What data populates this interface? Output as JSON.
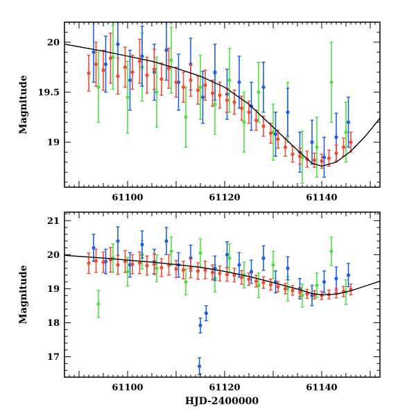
{
  "chart_data": [
    {
      "id": "upper",
      "type": "scatter",
      "xlabel": "",
      "ylabel": "Magnitude",
      "xlim": [
        61087,
        61152
      ],
      "ylim": [
        20.2,
        18.55
      ],
      "y_inverted": true,
      "x_ticks": [
        61100,
        61120,
        61140
      ],
      "y_ticks": [
        19,
        19.5,
        20
      ],
      "x_tick_labels": [
        "61100",
        "61120",
        "61140"
      ],
      "y_tick_labels": [
        "19",
        "19.5",
        "20"
      ],
      "model_curve": {
        "color": "#000000",
        "x": [
          61087,
          61095,
          61100,
          61105,
          61110,
          61115,
          61120,
          61125,
          61130,
          61135,
          61138,
          61140,
          61143,
          61146,
          61149,
          61152
        ],
        "y": [
          19.98,
          19.91,
          19.86,
          19.81,
          19.74,
          19.66,
          19.55,
          19.38,
          19.15,
          18.92,
          18.79,
          18.76,
          18.8,
          18.91,
          19.06,
          19.24
        ]
      },
      "series": [
        {
          "name": "red",
          "color": "#f04a30",
          "x": [
            61092.0,
            61093.5,
            61095.0,
            61096.5,
            61098.0,
            61099.5,
            61101.0,
            61102.5,
            61104.0,
            61105.5,
            61107.0,
            61108.5,
            61110.0,
            61111.5,
            61113.0,
            61114.5,
            61116.0,
            61117.5,
            61119.0,
            61120.5,
            61122.0,
            61123.5,
            61125.0,
            61126.5,
            61128.0,
            61129.5,
            61131.0,
            61132.5,
            61134.0,
            61135.5,
            61137.0,
            61138.5,
            61140.0,
            61141.5,
            61143.0,
            61144.5,
            61146.0
          ],
          "y": [
            19.69,
            19.78,
            19.72,
            19.84,
            19.66,
            19.75,
            19.7,
            19.81,
            19.67,
            19.73,
            19.63,
            19.74,
            19.6,
            19.55,
            19.62,
            19.52,
            19.57,
            19.49,
            19.47,
            19.42,
            19.4,
            19.34,
            19.3,
            19.22,
            19.16,
            19.09,
            19.03,
            18.95,
            18.88,
            18.86,
            18.83,
            18.82,
            18.81,
            18.84,
            18.89,
            18.95,
            19.0
          ],
          "err": [
            0.18,
            0.22,
            0.2,
            0.25,
            0.18,
            0.2,
            0.17,
            0.22,
            0.18,
            0.2,
            0.16,
            0.2,
            0.15,
            0.15,
            0.16,
            0.14,
            0.15,
            0.13,
            0.13,
            0.12,
            0.12,
            0.12,
            0.11,
            0.1,
            0.1,
            0.1,
            0.09,
            0.09,
            0.08,
            0.08,
            0.08,
            0.07,
            0.07,
            0.08,
            0.08,
            0.09,
            0.1
          ]
        },
        {
          "name": "blue",
          "color": "#1f5fe0",
          "x": [
            61093.0,
            61095.5,
            61098.0,
            61100.5,
            61103.0,
            61105.5,
            61108.0,
            61110.5,
            61113.0,
            61115.5,
            61118.0,
            61120.5,
            61123.0,
            61125.5,
            61128.0,
            61130.5,
            61133.0,
            61135.5,
            61138.0,
            61140.5,
            61143.0,
            61145.5
          ],
          "y": [
            19.9,
            19.78,
            19.98,
            19.62,
            19.86,
            19.7,
            19.92,
            19.6,
            19.78,
            19.45,
            19.7,
            19.48,
            19.6,
            19.36,
            19.55,
            19.08,
            19.3,
            18.9,
            19.0,
            18.85,
            19.05,
            19.2
          ],
          "err": [
            0.3,
            0.28,
            0.32,
            0.3,
            0.3,
            0.28,
            0.3,
            0.28,
            0.26,
            0.26,
            0.28,
            0.25,
            0.26,
            0.24,
            0.25,
            0.22,
            0.24,
            0.2,
            0.22,
            0.2,
            0.24,
            0.25
          ]
        },
        {
          "name": "green",
          "color": "#4ee045",
          "x": [
            61094.0,
            61097.0,
            61100.0,
            61103.0,
            61106.0,
            61109.0,
            61112.0,
            61115.0,
            61118.0,
            61121.0,
            61124.0,
            61127.0,
            61130.0,
            61133.0,
            61136.0,
            61139.0,
            61142.0,
            61145.0
          ],
          "y": [
            19.55,
            19.85,
            19.45,
            19.75,
            19.5,
            19.82,
            19.25,
            19.55,
            19.38,
            19.62,
            19.2,
            19.5,
            19.1,
            19.3,
            18.85,
            18.95,
            19.6,
            19.1
          ],
          "err": [
            0.35,
            0.32,
            0.36,
            0.34,
            0.35,
            0.33,
            0.3,
            0.32,
            0.3,
            0.32,
            0.3,
            0.3,
            0.28,
            0.3,
            0.26,
            0.3,
            0.4,
            0.3
          ]
        }
      ]
    },
    {
      "id": "lower",
      "type": "scatter",
      "xlabel": "HJD-2400000",
      "ylabel": "Magnitude",
      "xlim": [
        61087,
        61152
      ],
      "ylim": [
        21.25,
        16.4
      ],
      "y_inverted": true,
      "x_ticks": [
        61100,
        61120,
        61140
      ],
      "y_ticks": [
        17,
        18,
        19,
        20,
        21
      ],
      "x_tick_labels": [
        "61100",
        "61120",
        "61140"
      ],
      "y_tick_labels": [
        "17",
        "18",
        "19",
        "20",
        "21"
      ],
      "model_curve": {
        "color": "#000000",
        "x": [
          61087,
          61095,
          61100,
          61105,
          61110,
          61115,
          61120,
          61125,
          61130,
          61135,
          61138,
          61140,
          61143,
          61146,
          61149,
          61152
        ],
        "y": [
          19.98,
          19.9,
          19.84,
          19.78,
          19.71,
          19.63,
          19.51,
          19.36,
          19.18,
          18.99,
          18.86,
          18.82,
          18.84,
          18.94,
          19.08,
          19.22
        ]
      },
      "series": [
        {
          "name": "red",
          "color": "#f04a30",
          "x": [
            61092.0,
            61093.5,
            61095.0,
            61096.5,
            61098.0,
            61099.5,
            61101.0,
            61102.5,
            61104.0,
            61105.5,
            61107.0,
            61108.5,
            61110.0,
            61111.5,
            61113.0,
            61114.5,
            61116.0,
            61117.5,
            61119.0,
            61120.5,
            61122.0,
            61123.5,
            61125.0,
            61126.5,
            61128.0,
            61129.5,
            61131.0,
            61132.5,
            61134.0,
            61135.5,
            61137.0,
            61138.5,
            61140.0,
            61141.5,
            61143.0,
            61144.5,
            61146.0
          ],
          "y": [
            19.75,
            19.82,
            19.78,
            19.85,
            19.7,
            19.8,
            19.72,
            19.76,
            19.68,
            19.72,
            19.62,
            19.7,
            19.58,
            19.55,
            19.6,
            19.52,
            19.55,
            19.48,
            19.45,
            19.42,
            19.4,
            19.33,
            19.28,
            19.22,
            19.18,
            19.12,
            19.06,
            19.0,
            18.95,
            18.9,
            18.85,
            18.82,
            18.8,
            18.83,
            18.87,
            18.92,
            18.98
          ],
          "err": [
            0.3,
            0.34,
            0.3,
            0.36,
            0.28,
            0.32,
            0.28,
            0.32,
            0.28,
            0.3,
            0.26,
            0.3,
            0.25,
            0.26,
            0.28,
            0.24,
            0.26,
            0.22,
            0.22,
            0.2,
            0.2,
            0.2,
            0.18,
            0.17,
            0.17,
            0.16,
            0.15,
            0.15,
            0.14,
            0.14,
            0.13,
            0.12,
            0.12,
            0.13,
            0.14,
            0.15,
            0.16
          ]
        },
        {
          "name": "blue",
          "color": "#1f5fe0",
          "x": [
            61093.0,
            61095.5,
            61098.0,
            61100.5,
            61103.0,
            61105.5,
            61108.0,
            61110.5,
            61113.0,
            61114.8,
            61115.0,
            61116.2,
            61118.0,
            61120.5,
            61123.0,
            61125.5,
            61128.0,
            61130.5,
            61133.0,
            61135.5,
            61138.0,
            61140.5,
            61143.0,
            61145.5
          ],
          "y": [
            20.2,
            19.8,
            20.4,
            19.7,
            20.3,
            19.8,
            20.4,
            19.7,
            19.9,
            16.72,
            17.92,
            18.28,
            19.6,
            20.0,
            19.7,
            19.5,
            19.9,
            19.2,
            19.6,
            19.0,
            18.8,
            19.2,
            19.3,
            19.4
          ],
          "err": [
            0.4,
            0.36,
            0.42,
            0.36,
            0.4,
            0.36,
            0.4,
            0.36,
            0.38,
            0.25,
            0.22,
            0.22,
            0.36,
            0.38,
            0.36,
            0.34,
            0.36,
            0.32,
            0.34,
            0.3,
            0.3,
            0.32,
            0.34,
            0.34
          ]
        },
        {
          "name": "green",
          "color": "#4ee045",
          "x": [
            61094.0,
            61097.0,
            61100.0,
            61103.0,
            61106.0,
            61109.0,
            61112.0,
            61115.0,
            61118.0,
            61121.0,
            61124.0,
            61127.0,
            61130.0,
            61133.0,
            61136.0,
            61139.0,
            61142.0,
            61145.0
          ],
          "y": [
            18.55,
            19.9,
            19.5,
            20.0,
            19.6,
            20.1,
            19.2,
            20.05,
            19.3,
            19.9,
            19.4,
            19.1,
            19.7,
            19.0,
            18.8,
            19.1,
            20.1,
            18.9
          ],
          "err": [
            0.4,
            0.42,
            0.42,
            0.42,
            0.4,
            0.42,
            0.38,
            0.42,
            0.4,
            0.42,
            0.38,
            0.36,
            0.4,
            0.36,
            0.34,
            0.36,
            0.42,
            0.36
          ]
        }
      ]
    }
  ]
}
